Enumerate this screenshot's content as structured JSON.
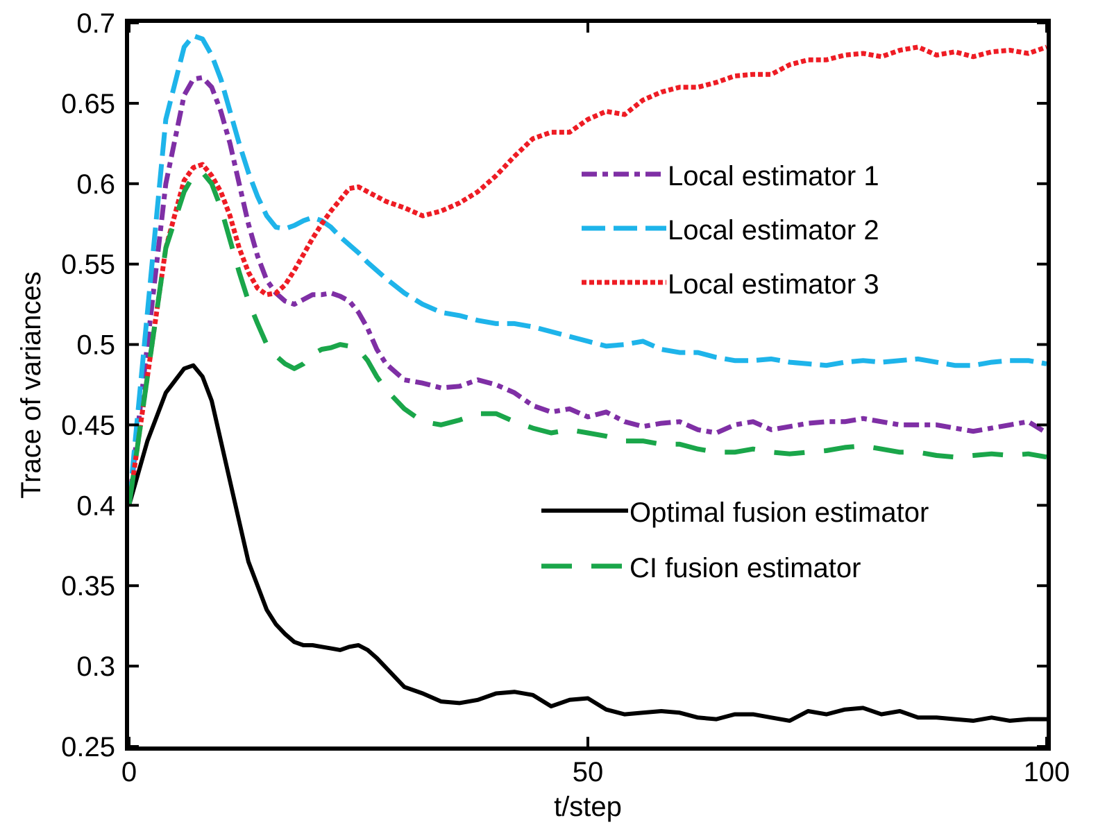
{
  "chart_data": {
    "type": "line",
    "title": "",
    "xlabel": "t/step",
    "ylabel": "Trace of variances",
    "xlim": [
      0,
      100
    ],
    "ylim": [
      0.25,
      0.7
    ],
    "xticks": [
      0,
      50,
      100
    ],
    "xtick_labels": [
      "0",
      "50",
      "100"
    ],
    "yticks": [
      0.25,
      0.3,
      0.35,
      0.4,
      0.45,
      0.5,
      0.55,
      0.6,
      0.65,
      0.7
    ],
    "ytick_labels": [
      "0.25",
      "0.3",
      "0.35",
      "0.4",
      "0.45",
      "0.5",
      "0.55",
      "0.6",
      "0.65",
      "0.7"
    ],
    "grid": false,
    "series": [
      {
        "name": "Local estimator 1",
        "color": "#7f2fa5",
        "style": "dashdot",
        "legend_group": 1,
        "x": [
          0,
          2,
          4,
          6,
          7,
          8,
          9,
          10,
          11,
          12,
          13,
          14,
          15,
          16,
          17,
          18,
          19,
          20,
          21,
          22,
          23,
          24,
          25,
          26,
          27,
          28,
          29,
          30,
          32,
          34,
          36,
          38,
          40,
          42,
          44,
          46,
          48,
          50,
          52,
          54,
          56,
          58,
          60,
          62,
          64,
          66,
          68,
          70,
          72,
          74,
          76,
          78,
          80,
          82,
          84,
          86,
          88,
          90,
          92,
          94,
          96,
          98,
          100
        ],
        "y": [
          0.4,
          0.5,
          0.6,
          0.655,
          0.665,
          0.666,
          0.66,
          0.645,
          0.625,
          0.6,
          0.575,
          0.555,
          0.54,
          0.532,
          0.527,
          0.525,
          0.528,
          0.531,
          0.531,
          0.532,
          0.53,
          0.527,
          0.52,
          0.51,
          0.497,
          0.488,
          0.483,
          0.478,
          0.476,
          0.473,
          0.474,
          0.478,
          0.475,
          0.47,
          0.462,
          0.458,
          0.46,
          0.455,
          0.458,
          0.452,
          0.449,
          0.451,
          0.452,
          0.447,
          0.445,
          0.45,
          0.452,
          0.447,
          0.449,
          0.451,
          0.452,
          0.452,
          0.454,
          0.452,
          0.45,
          0.45,
          0.45,
          0.448,
          0.446,
          0.448,
          0.45,
          0.452,
          0.445
        ]
      },
      {
        "name": "Local estimator 2",
        "color": "#1eb4ea",
        "style": "dashed",
        "legend_group": 1,
        "x": [
          0,
          2,
          4,
          6,
          7,
          8,
          9,
          10,
          11,
          12,
          13,
          14,
          15,
          16,
          17,
          18,
          19,
          20,
          21,
          22,
          23,
          24,
          25,
          26,
          28,
          30,
          32,
          34,
          36,
          38,
          40,
          42,
          44,
          46,
          48,
          50,
          52,
          54,
          56,
          58,
          60,
          62,
          64,
          66,
          68,
          70,
          72,
          74,
          76,
          78,
          80,
          82,
          84,
          86,
          88,
          90,
          92,
          94,
          96,
          98,
          100
        ],
        "y": [
          0.4,
          0.52,
          0.64,
          0.685,
          0.692,
          0.69,
          0.68,
          0.665,
          0.645,
          0.625,
          0.607,
          0.592,
          0.58,
          0.573,
          0.572,
          0.574,
          0.577,
          0.579,
          0.577,
          0.573,
          0.567,
          0.562,
          0.557,
          0.551,
          0.541,
          0.532,
          0.525,
          0.52,
          0.518,
          0.515,
          0.513,
          0.513,
          0.511,
          0.508,
          0.505,
          0.502,
          0.499,
          0.5,
          0.502,
          0.497,
          0.495,
          0.495,
          0.492,
          0.49,
          0.49,
          0.491,
          0.489,
          0.488,
          0.487,
          0.489,
          0.49,
          0.489,
          0.49,
          0.491,
          0.489,
          0.487,
          0.487,
          0.489,
          0.49,
          0.49,
          0.488
        ]
      },
      {
        "name": "Local estimator 3",
        "color": "#ee1c24",
        "style": "dotted",
        "legend_group": 1,
        "x": [
          0,
          2,
          4,
          6,
          7,
          8,
          9,
          10,
          11,
          12,
          13,
          14,
          15,
          16,
          17,
          18,
          19,
          20,
          21,
          22,
          23,
          24,
          25,
          26,
          27,
          28,
          30,
          32,
          34,
          36,
          38,
          40,
          42,
          44,
          46,
          48,
          50,
          52,
          54,
          56,
          58,
          60,
          62,
          64,
          66,
          68,
          70,
          72,
          74,
          76,
          78,
          80,
          82,
          84,
          86,
          88,
          90,
          92,
          94,
          96,
          98,
          100
        ],
        "y": [
          0.4,
          0.48,
          0.56,
          0.602,
          0.61,
          0.612,
          0.605,
          0.595,
          0.58,
          0.56,
          0.545,
          0.535,
          0.531,
          0.532,
          0.537,
          0.546,
          0.556,
          0.566,
          0.575,
          0.583,
          0.59,
          0.597,
          0.598,
          0.595,
          0.592,
          0.589,
          0.585,
          0.58,
          0.583,
          0.588,
          0.595,
          0.605,
          0.617,
          0.628,
          0.632,
          0.632,
          0.64,
          0.645,
          0.643,
          0.652,
          0.657,
          0.66,
          0.66,
          0.663,
          0.667,
          0.668,
          0.668,
          0.674,
          0.677,
          0.677,
          0.68,
          0.681,
          0.679,
          0.683,
          0.685,
          0.68,
          0.682,
          0.679,
          0.682,
          0.683,
          0.681,
          0.685
        ]
      },
      {
        "name": "Optimal fusion estimator",
        "color": "#000000",
        "style": "solid",
        "legend_group": 2,
        "x": [
          0,
          2,
          4,
          6,
          7,
          8,
          9,
          10,
          11,
          12,
          13,
          14,
          15,
          16,
          17,
          18,
          19,
          20,
          21,
          22,
          23,
          24,
          25,
          26,
          27,
          28,
          30,
          32,
          34,
          36,
          38,
          40,
          42,
          44,
          46,
          48,
          50,
          52,
          54,
          56,
          58,
          60,
          62,
          64,
          66,
          68,
          70,
          72,
          74,
          76,
          78,
          80,
          82,
          84,
          86,
          88,
          90,
          92,
          94,
          96,
          98,
          100
        ],
        "y": [
          0.4,
          0.44,
          0.47,
          0.485,
          0.487,
          0.48,
          0.465,
          0.44,
          0.415,
          0.39,
          0.365,
          0.35,
          0.335,
          0.326,
          0.32,
          0.315,
          0.313,
          0.313,
          0.312,
          0.311,
          0.31,
          0.312,
          0.313,
          0.31,
          0.305,
          0.299,
          0.287,
          0.283,
          0.278,
          0.277,
          0.279,
          0.283,
          0.284,
          0.282,
          0.275,
          0.279,
          0.28,
          0.273,
          0.27,
          0.271,
          0.272,
          0.271,
          0.268,
          0.267,
          0.27,
          0.27,
          0.268,
          0.266,
          0.272,
          0.27,
          0.273,
          0.274,
          0.27,
          0.272,
          0.268,
          0.268,
          0.267,
          0.266,
          0.268,
          0.266,
          0.267,
          0.267
        ]
      },
      {
        "name": "CI fusion estimator",
        "color": "#1aa64a",
        "style": "longdash",
        "legend_group": 2,
        "x": [
          0,
          2,
          4,
          6,
          7,
          8,
          9,
          10,
          11,
          12,
          13,
          14,
          15,
          16,
          17,
          18,
          19,
          20,
          21,
          22,
          23,
          24,
          25,
          26,
          27,
          28,
          30,
          32,
          34,
          36,
          38,
          40,
          42,
          44,
          46,
          48,
          50,
          52,
          54,
          56,
          58,
          60,
          62,
          64,
          66,
          68,
          70,
          72,
          74,
          76,
          78,
          80,
          82,
          84,
          86,
          88,
          90,
          92,
          94,
          96,
          98,
          100
        ],
        "y": [
          0.4,
          0.48,
          0.56,
          0.595,
          0.605,
          0.607,
          0.6,
          0.585,
          0.565,
          0.545,
          0.527,
          0.513,
          0.5,
          0.493,
          0.488,
          0.485,
          0.488,
          0.494,
          0.497,
          0.498,
          0.5,
          0.499,
          0.497,
          0.49,
          0.48,
          0.472,
          0.46,
          0.452,
          0.45,
          0.453,
          0.457,
          0.457,
          0.452,
          0.448,
          0.445,
          0.447,
          0.445,
          0.443,
          0.44,
          0.44,
          0.438,
          0.438,
          0.435,
          0.433,
          0.433,
          0.435,
          0.433,
          0.432,
          0.433,
          0.434,
          0.436,
          0.437,
          0.435,
          0.433,
          0.433,
          0.431,
          0.43,
          0.431,
          0.432,
          0.431,
          0.432,
          0.43
        ]
      }
    ]
  }
}
